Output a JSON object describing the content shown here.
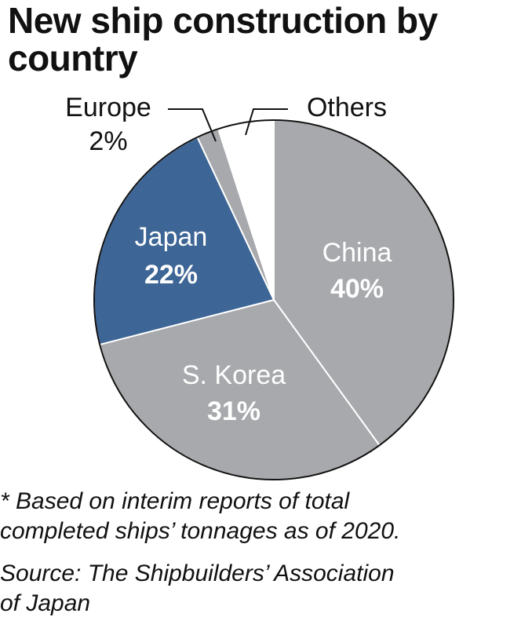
{
  "chart_data": {
    "type": "pie",
    "title_lines": [
      "New ship construction by",
      "country"
    ],
    "slices": [
      {
        "label": "China",
        "value": 40,
        "value_label": "40%",
        "color": "#a7a9ac"
      },
      {
        "label": "S. Korea",
        "value": 31,
        "value_label": "31%",
        "color": "#a7a9ac"
      },
      {
        "label": "Japan",
        "value": 22,
        "value_label": "22%",
        "color": "#3d6595"
      },
      {
        "label": "Europe",
        "value": 2,
        "value_label": "2%",
        "color": "#a7a9ac"
      },
      {
        "label": "Others",
        "value": 5,
        "value_label": "",
        "color": "#ffffff"
      }
    ],
    "start": "12 o'clock, clockwise",
    "legend": "none"
  },
  "footnote_lines": [
    "* Based on interim reports of total",
    "completed ships’ tonnages as of 2020."
  ],
  "source_lines": [
    "Source: The Shipbuilders’ Association",
    "of Japan"
  ]
}
